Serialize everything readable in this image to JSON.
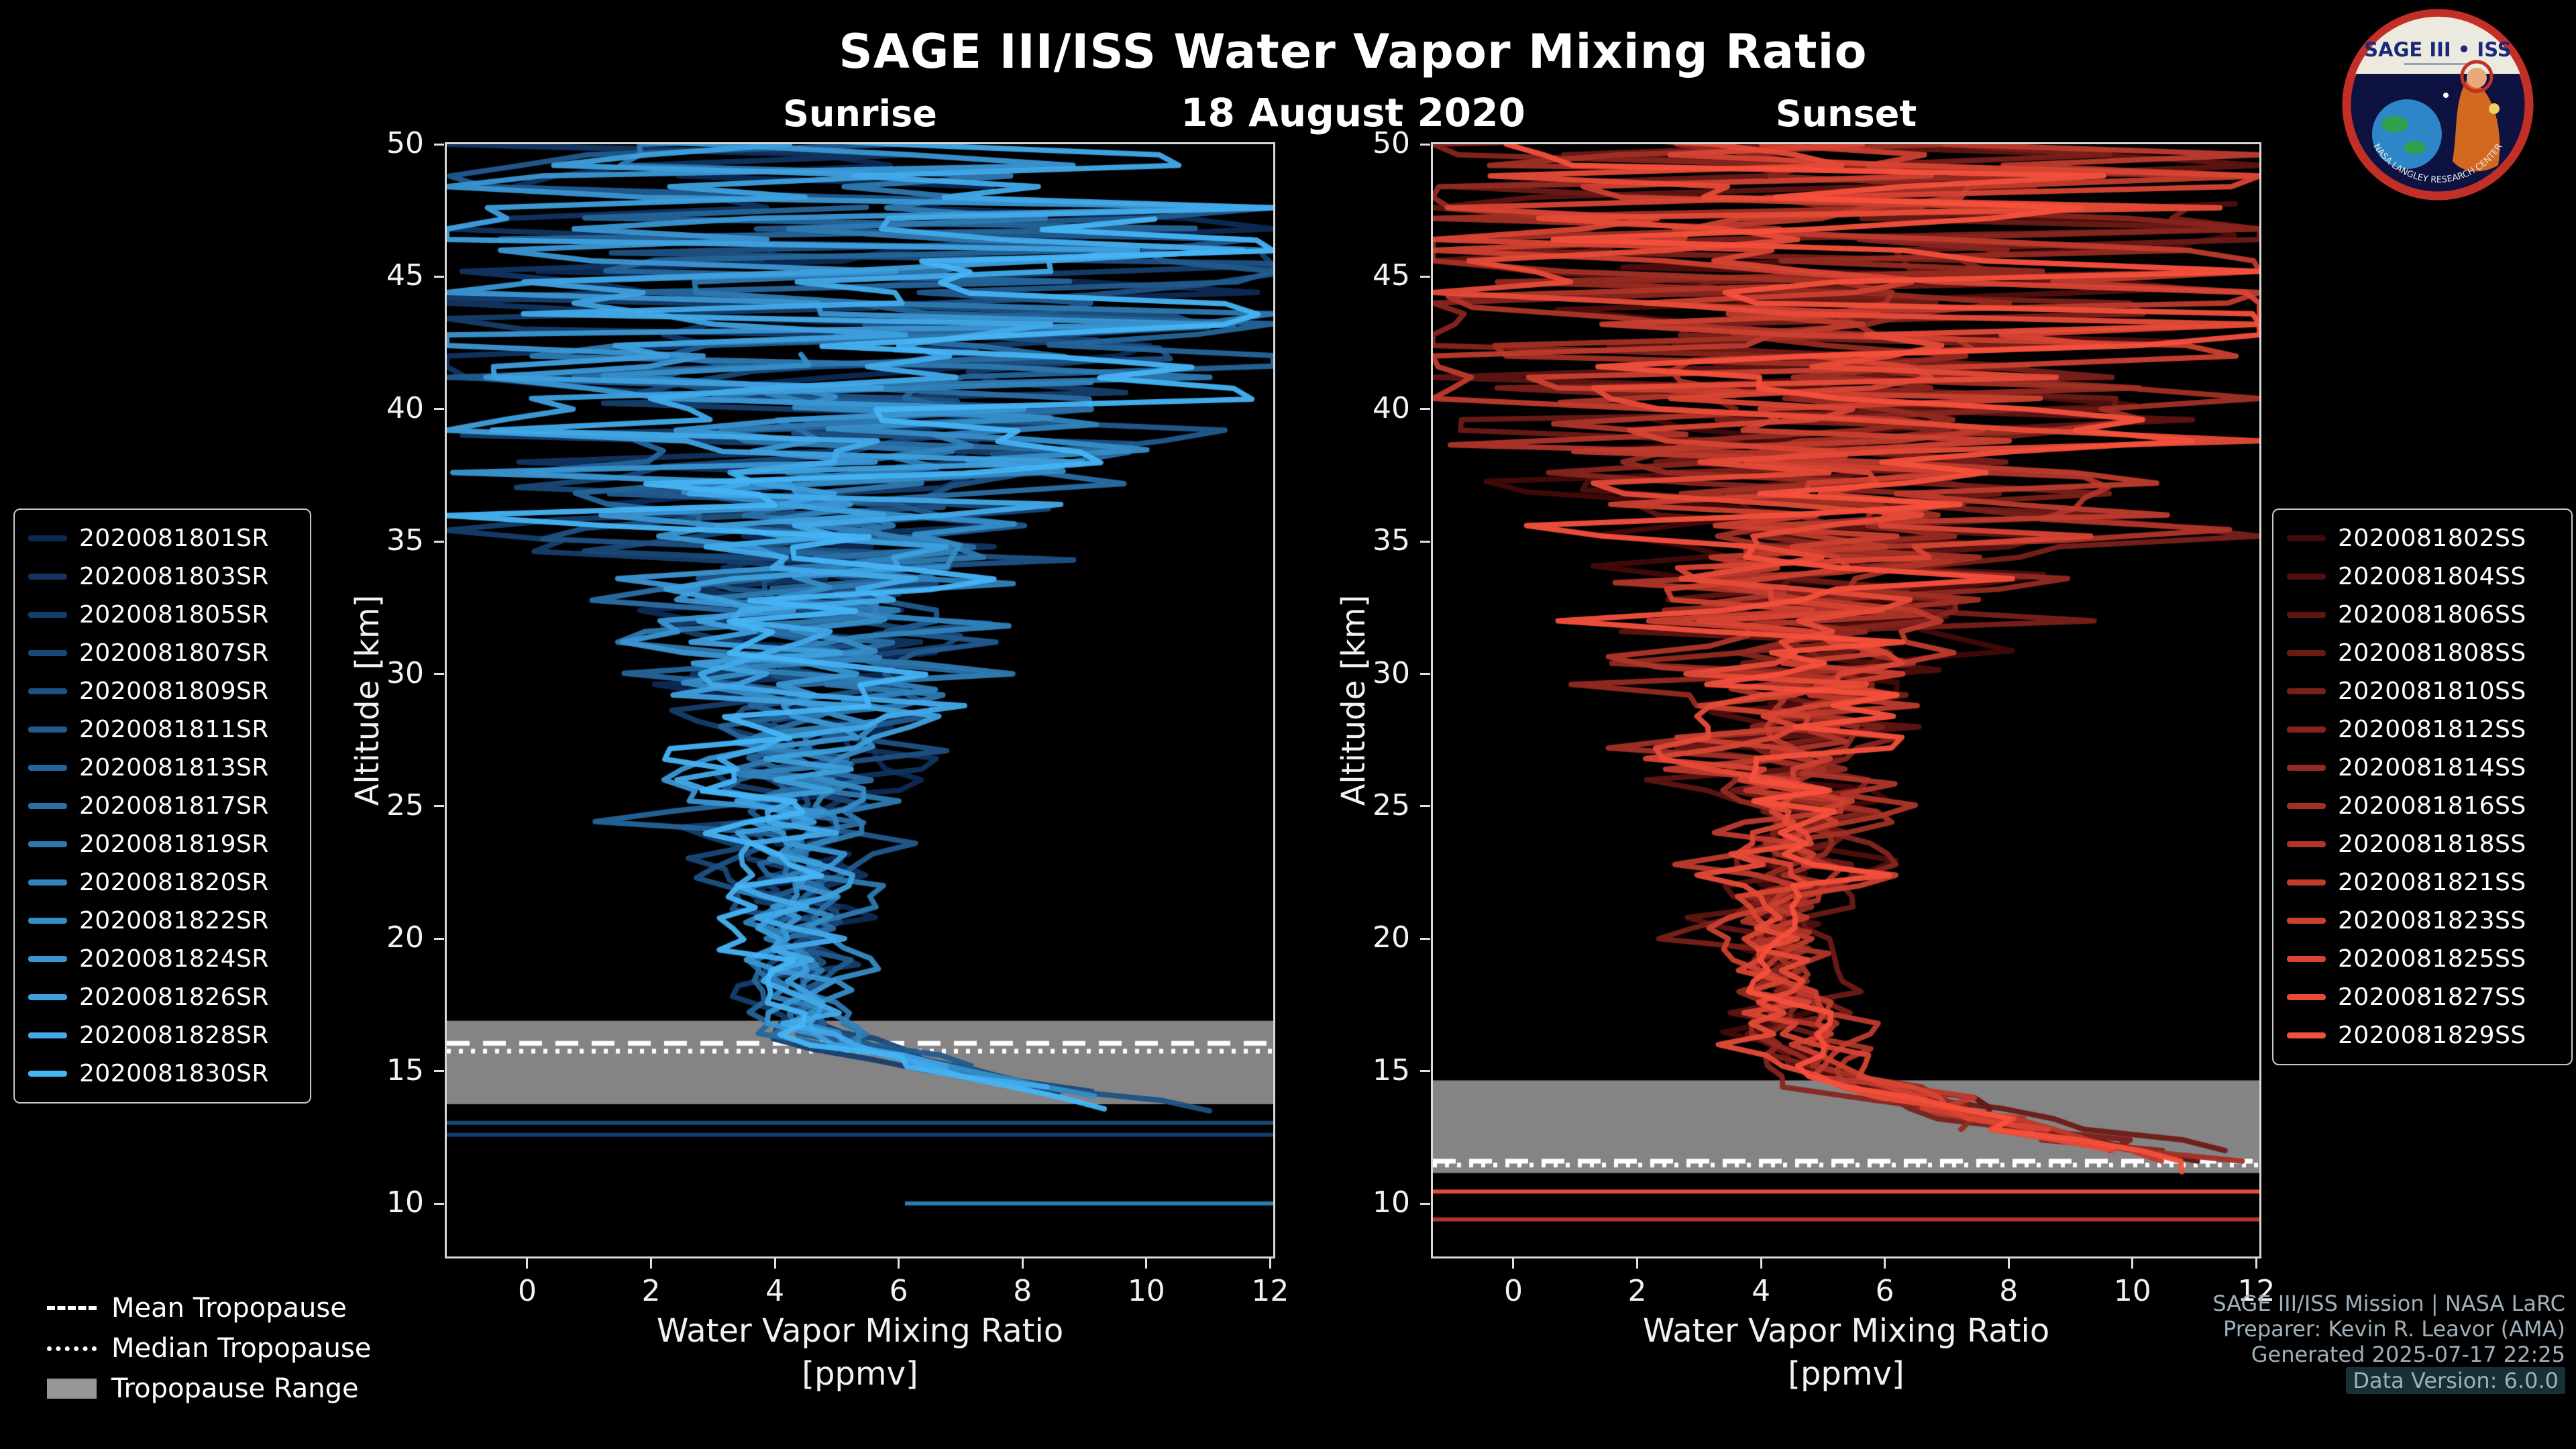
{
  "chart_data": {
    "type": "line",
    "title": "SAGE III/ISS Water Vapor Mixing Ratio",
    "subtitle_date": "18 August 2020",
    "axes": {
      "xlabel_line1": "Water Vapor Mixing Ratio",
      "xlabel_line2": "[ppmv]",
      "ylabel": "Altitude [km]",
      "xlim": [
        -1.3,
        12.05
      ],
      "ylim": [
        8,
        50
      ],
      "x_ticks": [
        0,
        2,
        4,
        6,
        8,
        10,
        12
      ],
      "y_ticks": [
        10,
        15,
        20,
        25,
        30,
        35,
        40,
        45,
        50
      ],
      "grid": false
    },
    "tropopause_legend": [
      {
        "label": "Mean Tropopause",
        "style": "dashed"
      },
      {
        "label": "Median Tropopause",
        "style": "dotted"
      },
      {
        "label": "Tropopause Range",
        "style": "patch",
        "color": "#969696"
      }
    ],
    "charts": [
      {
        "id": "sunrise",
        "title": "Sunrise",
        "legend_position": "outside-left",
        "series": [
          {
            "label": "2020081801SR",
            "color": "#0d2a55"
          },
          {
            "label": "2020081803SR",
            "color": "#113460"
          },
          {
            "label": "2020081805SR",
            "color": "#153e6c"
          },
          {
            "label": "2020081807SR",
            "color": "#194877"
          },
          {
            "label": "2020081809SR",
            "color": "#1d5183"
          },
          {
            "label": "2020081811SR",
            "color": "#215b8e"
          },
          {
            "label": "2020081813SR",
            "color": "#25659a"
          },
          {
            "label": "2020081817SR",
            "color": "#2a6fa5"
          },
          {
            "label": "2020081819SR",
            "color": "#2e79b0"
          },
          {
            "label": "2020081820SR",
            "color": "#3283bc"
          },
          {
            "label": "2020081822SR",
            "color": "#368dc7"
          },
          {
            "label": "2020081824SR",
            "color": "#3a96d3"
          },
          {
            "label": "2020081826SR",
            "color": "#3ea0de"
          },
          {
            "label": "2020081828SR",
            "color": "#42aaea"
          },
          {
            "label": "2020081830SR",
            "color": "#46b4f5"
          }
        ],
        "tropopause": {
          "mean_km": 16.05,
          "median_km": 15.75,
          "range_km": [
            13.75,
            16.9
          ]
        },
        "base_profile": {
          "altitude_km": [
            9,
            12.5,
            13.5,
            15,
            16,
            17,
            18,
            20,
            25,
            30,
            35,
            40,
            45,
            50
          ],
          "ppmv": [
            13,
            12.3,
            10.5,
            7.0,
            5.2,
            4.5,
            4.3,
            4.25,
            4.35,
            4.55,
            4.8,
            5.0,
            5.1,
            5.15
          ]
        },
        "noise_sigma": {
          "altitude_km": [
            9,
            14,
            16,
            18,
            20,
            24,
            28,
            32,
            36,
            40,
            43,
            46,
            50
          ],
          "sigma_ppmv": [
            0.5,
            0.45,
            0.4,
            0.35,
            0.45,
            0.7,
            1.05,
            1.5,
            2.2,
            3.1,
            4.0,
            4.6,
            4.9
          ]
        },
        "profile_bottom_km": [
          13.2,
          16.4
        ],
        "flat_lines": [
          {
            "altitude_km": 13.05,
            "x_from": -1.3,
            "x_to": 12.05,
            "color": "#194877"
          },
          {
            "altitude_km": 12.6,
            "x_from": -1.3,
            "x_to": 12.05,
            "color": "#153e6c"
          },
          {
            "altitude_km": 10.0,
            "x_from": 6.1,
            "x_to": 12.05,
            "color": "#2e79b0"
          }
        ]
      },
      {
        "id": "sunset",
        "title": "Sunset",
        "legend_position": "outside-right",
        "series": [
          {
            "label": "2020081802SS",
            "color": "#420a0a"
          },
          {
            "label": "2020081804SS",
            "color": "#500f0e"
          },
          {
            "label": "2020081806SS",
            "color": "#5e1512"
          },
          {
            "label": "2020081808SS",
            "color": "#6b1a16"
          },
          {
            "label": "2020081810SS",
            "color": "#792019"
          },
          {
            "label": "2020081812SS",
            "color": "#87251d"
          },
          {
            "label": "2020081814SS",
            "color": "#952a21"
          },
          {
            "label": "2020081816SS",
            "color": "#a23025"
          },
          {
            "label": "2020081818SS",
            "color": "#b03529"
          },
          {
            "label": "2020081821SS",
            "color": "#be3b2d"
          },
          {
            "label": "2020081823SS",
            "color": "#cc4030"
          },
          {
            "label": "2020081825SS",
            "color": "#d94534"
          },
          {
            "label": "2020081827SS",
            "color": "#e74b38"
          },
          {
            "label": "2020081829SS",
            "color": "#f5503c"
          }
        ],
        "tropopause": {
          "mean_km": 11.6,
          "median_km": 11.45,
          "range_km": [
            11.15,
            14.65
          ]
        },
        "base_profile": {
          "altitude_km": [
            8.5,
            10.5,
            11.5,
            13,
            14,
            15,
            16,
            18,
            20,
            25,
            30,
            35,
            40,
            45,
            50
          ],
          "ppmv": [
            13,
            12.5,
            11,
            7.8,
            6.0,
            5.0,
            4.6,
            4.35,
            4.3,
            4.4,
            4.6,
            4.85,
            5.05,
            5.15,
            5.2
          ]
        },
        "noise_sigma": {
          "altitude_km": [
            9,
            14,
            16,
            18,
            20,
            24,
            28,
            32,
            36,
            40,
            43,
            46,
            50
          ],
          "sigma_ppmv": [
            0.5,
            0.5,
            0.45,
            0.4,
            0.5,
            0.75,
            1.1,
            1.55,
            2.25,
            3.2,
            4.1,
            4.7,
            5.0
          ]
        },
        "profile_bottom_km": [
          10.8,
          13.8
        ],
        "flat_lines": [
          {
            "altitude_km": 10.45,
            "x_from": -1.3,
            "x_to": 12.05,
            "color": "#e74b38"
          },
          {
            "altitude_km": 9.4,
            "x_from": -1.3,
            "x_to": 12.05,
            "color": "#b03529"
          }
        ]
      }
    ]
  },
  "branding": {
    "credits": [
      "SAGE III/ISS Mission | NASA LaRC",
      "Preparer: Kevin R. Leavor (AMA)",
      "Generated 2025-07-17 22:25",
      "Data Version: 6.0.0"
    ],
    "logo": {
      "title": "SAGE III • ISS",
      "ring_text": "NASA LANGLEY RESEARCH CENTER"
    }
  }
}
